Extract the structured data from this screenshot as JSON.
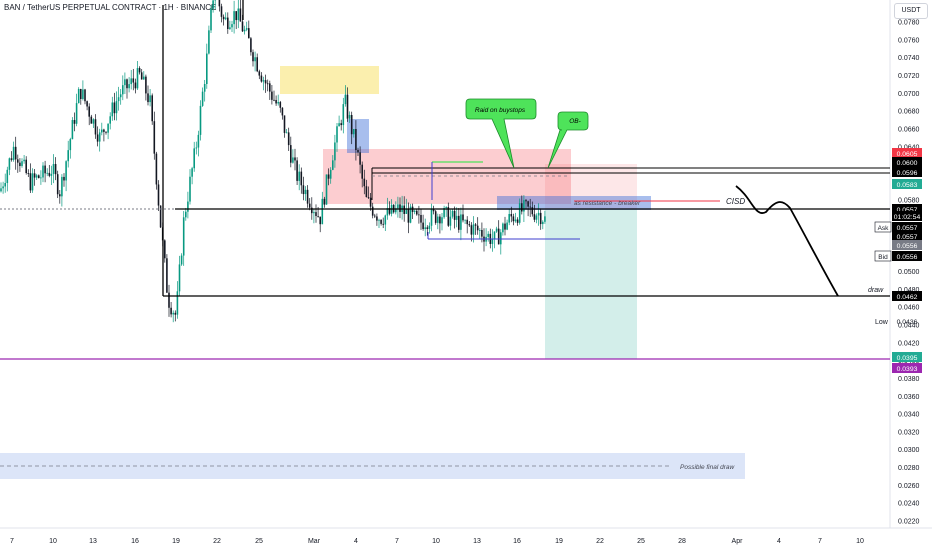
{
  "title": "BAN / TetherUS PERPETUAL CONTRACT · 1H · BINANCE",
  "currency": "USDT",
  "chart_data": {
    "type": "candlestick",
    "y_axis_ticks": [
      "0.0780",
      "0.0760",
      "0.0740",
      "0.0720",
      "0.0700",
      "0.0680",
      "0.0660",
      "0.0640",
      "0.0620",
      "0.0600",
      "0.0580",
      "0.0560",
      "0.0540",
      "0.0520",
      "0.0500",
      "0.0480",
      "0.0460",
      "0.0440",
      "0.0420",
      "0.0400",
      "0.0380",
      "0.0360",
      "0.0340",
      "0.0320",
      "0.0300",
      "0.0280",
      "0.0260",
      "0.0240",
      "0.0220"
    ],
    "x_axis_ticks": [
      "7",
      "10",
      "13",
      "16",
      "19",
      "22",
      "25",
      "Mar",
      "4",
      "7",
      "10",
      "13",
      "16",
      "19",
      "22",
      "25",
      "28",
      "Apr",
      "4",
      "7",
      "10"
    ],
    "price_labels": [
      {
        "value": "0.0605",
        "color": "#f23645"
      },
      {
        "value": "0.0600",
        "color": "#000000"
      },
      {
        "value": "0.0596",
        "color": "#000000"
      },
      {
        "value": "0.0583",
        "color": "#22ab94"
      },
      {
        "value": "0.0557",
        "color": "#000000"
      },
      {
        "value": "01:02:54",
        "color": "#000000"
      },
      {
        "value": "0.0557",
        "color": "#000000"
      },
      {
        "value": "0.0557",
        "color": "#000000"
      },
      {
        "value": "0.0556",
        "color": "#787b86"
      },
      {
        "value": "0.0556",
        "color": "#000000"
      },
      {
        "value": "0.0462",
        "color": "#000000"
      },
      {
        "value": "0.0436",
        "color": "#ffffff"
      },
      {
        "value": "0.0395",
        "color": "#22ab94"
      },
      {
        "value": "0.0393",
        "color": "#9c27b0"
      }
    ],
    "price_tags": {
      "ask": "Ask",
      "bid": "Bid",
      "low": "Low"
    },
    "annotations": {
      "raid": "Raid on buystops",
      "ob": "OB-",
      "resistance": "as resistance - breaker",
      "cisd": "CISD",
      "draw": "draw",
      "final_draw": "Possible final draw"
    },
    "levels": {
      "current": 0.0557,
      "draw": 0.0462,
      "low": 0.0436,
      "purple_line": 0.0393,
      "box_high_1": 0.06,
      "box_high_2": 0.0596,
      "possible_final_draw": 0.0283
    },
    "colors": {
      "up": "#089981",
      "down": "#131722",
      "red_zone": "#f23645",
      "green_zone": "#22ab94",
      "yellow_zone": "#f7e26b",
      "blue_zone": "#3f6fd8",
      "purple": "#9c27b0",
      "callout": "#4ee35a"
    }
  }
}
